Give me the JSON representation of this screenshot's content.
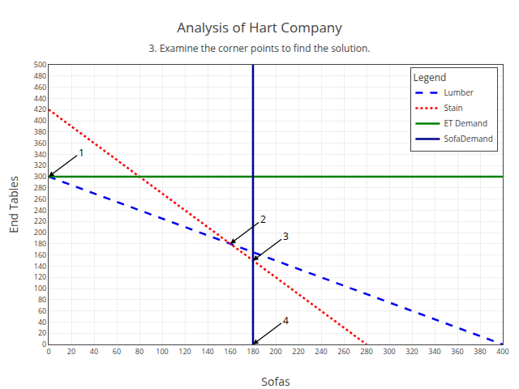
{
  "chart_data": {
    "type": "line",
    "title": "Analysis of Hart Company",
    "subtitle": "3. Examine the corner points to find the solution.",
    "xlabel": "Sofas",
    "ylabel": "End Tables",
    "xlim": [
      0,
      400
    ],
    "ylim": [
      0,
      500
    ],
    "xticks": [
      0,
      20,
      40,
      60,
      80,
      100,
      120,
      140,
      160,
      180,
      200,
      220,
      240,
      260,
      280,
      300,
      320,
      340,
      360,
      380,
      400
    ],
    "yticks": [
      0,
      20,
      40,
      60,
      80,
      100,
      120,
      140,
      160,
      180,
      200,
      220,
      240,
      260,
      280,
      300,
      320,
      340,
      360,
      380,
      400,
      420,
      440,
      460,
      480,
      500
    ],
    "grid": true,
    "legend": "upper right",
    "legend_title": "Legend",
    "series": [
      {
        "name": "Lumber",
        "type": "line",
        "x": [
          0,
          400
        ],
        "values": [
          300,
          0
        ],
        "color": "#0000EE",
        "line_style": "dashed"
      },
      {
        "name": "Stain",
        "type": "line",
        "x": [
          0,
          280
        ],
        "values": [
          420,
          0
        ],
        "color": "#FF0000",
        "line_style": "dotted"
      },
      {
        "name": "ET Demand",
        "type": "hline",
        "values": [
          300
        ],
        "color": "#008000",
        "line_style": "solid"
      },
      {
        "name": "SofaDemand",
        "type": "vline",
        "x": [
          180
        ],
        "color": "#00008B",
        "line_style": "solid"
      }
    ],
    "annotations": [
      {
        "text": "1",
        "x": 0,
        "y": 300
      },
      {
        "text": "2",
        "x": 160,
        "y": 180
      },
      {
        "text": "3",
        "x": 180,
        "y": 150
      },
      {
        "text": "4",
        "x": 180,
        "y": 0
      }
    ]
  }
}
